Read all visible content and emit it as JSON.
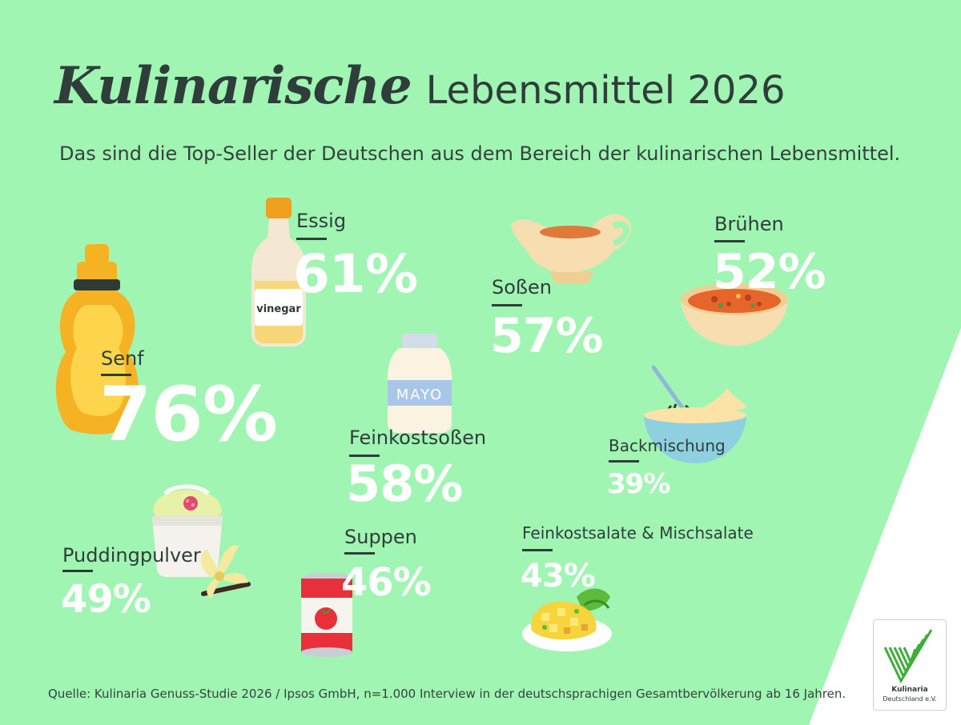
{
  "header": {
    "title_script": "Kulinarische",
    "title_rest": "Lebensmittel 2026",
    "subtitle": "Das sind die Top-Seller der Deutschen aus dem Bereich der kulinarischen Lebensmittel."
  },
  "items": {
    "senf": {
      "label": "Senf",
      "value": "76%"
    },
    "essig": {
      "label": "Essig",
      "value": "61%",
      "icon_text": "vinegar"
    },
    "sossen": {
      "label": "Soßen",
      "value": "57%"
    },
    "bruehen": {
      "label": "Brühen",
      "value": "52%"
    },
    "feinkostsossen": {
      "label": "Feinkostsoßen",
      "value": "58%",
      "icon_text": "MAYO"
    },
    "backmischung": {
      "label": "Backmischung",
      "value": "39%"
    },
    "puddingpulver": {
      "label": "Puddingpulver",
      "value": "49%"
    },
    "suppen": {
      "label": "Suppen",
      "value": "46%"
    },
    "feinkostsalate": {
      "label": "Feinkostsalate & Mischsalate",
      "value": "43%"
    }
  },
  "source": "Quelle: Kulinaria Genuss-Studie 2026 / Ipsos GmbH, n=1.000 Interview in der deutschsprachigen Gesamtbervölkerung ab 16 Jahren.",
  "logo": {
    "line1": "Kulinaria",
    "line2": "Deutschland e.V."
  },
  "colors": {
    "background": "#a0f5b3",
    "text": "#2f3e3a",
    "value": "#ffffff",
    "logo_green": "#3fae3a"
  }
}
